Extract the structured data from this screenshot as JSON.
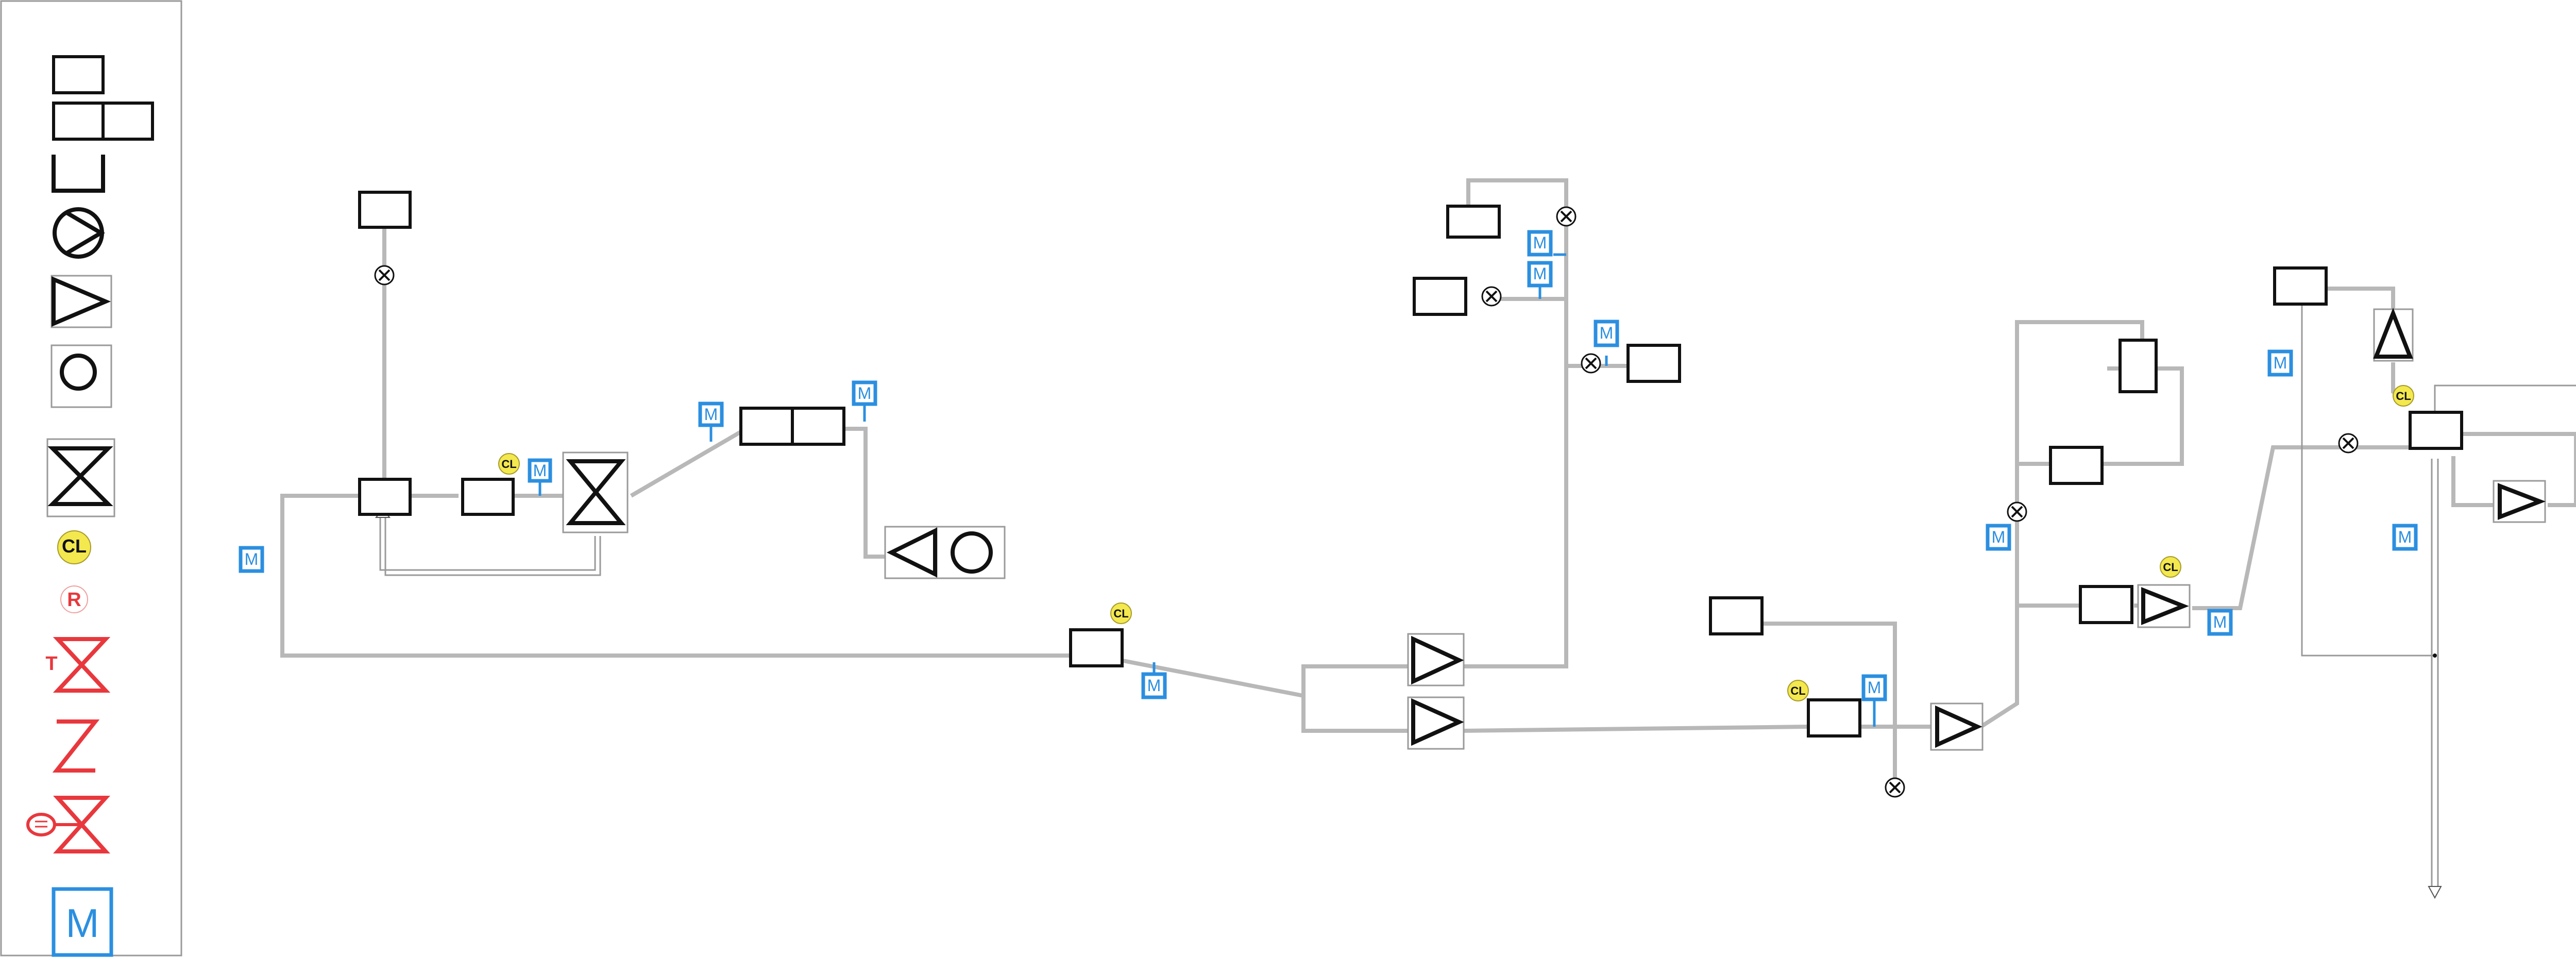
{
  "colors": {
    "pipe": "#b8b8b8",
    "equipment_outline": "#111111",
    "meter": "#2b8fe0",
    "chlorine_badge": "#f3e84e",
    "legend_red": "#e8383d"
  },
  "labels": {
    "meter": "M",
    "chlorine": "CL",
    "legend_r": "R",
    "legend_t": "T"
  },
  "legend": {
    "items": [
      {
        "icon": "single-box-icon"
      },
      {
        "icon": "double-box-icon"
      },
      {
        "icon": "open-tank-icon"
      },
      {
        "icon": "pump-icon"
      },
      {
        "icon": "triangle-pump-icon"
      },
      {
        "icon": "circle-icon"
      },
      {
        "icon": "hourglass-valve-icon"
      },
      {
        "icon": "chlorine-badge-icon"
      },
      {
        "icon": "r-badge-icon"
      },
      {
        "icon": "t-valve-icon"
      },
      {
        "icon": "zigzag-icon"
      },
      {
        "icon": "actuated-valve-icon"
      },
      {
        "icon": "meter-icon"
      }
    ]
  }
}
